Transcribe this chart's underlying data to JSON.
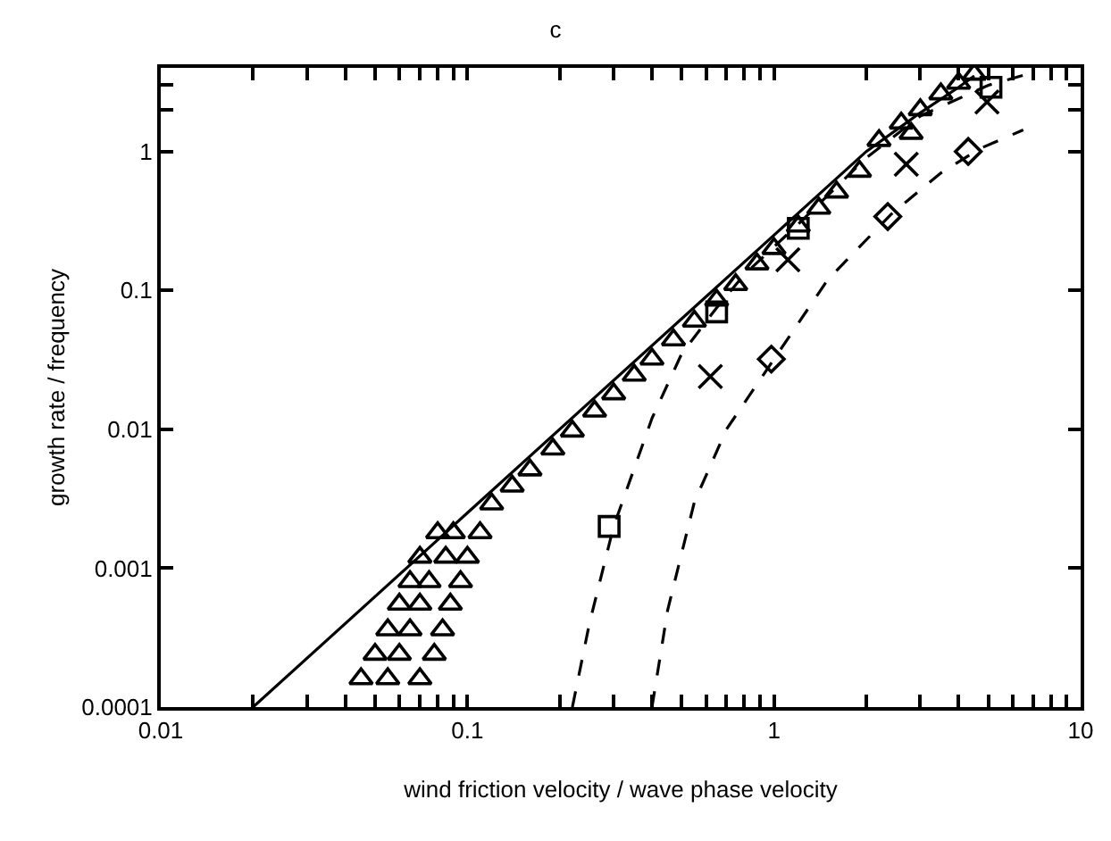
{
  "chart_data": {
    "type": "line",
    "title": "c",
    "xlabel": "wind friction velocity / wave phase velocity",
    "ylabel": "growth rate / frequency",
    "log": "xy",
    "xlim": [
      0.01,
      10
    ],
    "ylim": [
      0.0001,
      4
    ],
    "xticks": [
      0.01,
      {
        "value": 0.02,
        "label": null
      },
      {
        "value": 0.03,
        "label": null
      },
      {
        "value": 0.04,
        "label": null
      },
      {
        "value": 0.05,
        "label": null
      },
      {
        "value": 0.06,
        "label": null
      },
      {
        "value": 0.07,
        "label": null
      },
      {
        "value": 0.08,
        "label": null
      },
      {
        "value": 0.09,
        "label": null
      },
      0.1,
      {
        "value": 0.2,
        "label": null
      },
      {
        "value": 0.3,
        "label": null
      },
      {
        "value": 0.4,
        "label": null
      },
      {
        "value": 0.5,
        "label": null
      },
      {
        "value": 0.6,
        "label": null
      },
      {
        "value": 0.7,
        "label": null
      },
      {
        "value": 0.8,
        "label": null
      },
      {
        "value": 0.9,
        "label": null
      },
      1,
      {
        "value": 2,
        "label": null
      },
      {
        "value": 3,
        "label": null
      },
      {
        "value": 4,
        "label": null
      },
      {
        "value": 5,
        "label": null
      },
      {
        "value": 6,
        "label": null
      },
      {
        "value": 7,
        "label": null
      },
      {
        "value": 8,
        "label": null
      },
      {
        "value": 9,
        "label": null
      },
      10
    ],
    "yticks": [
      {
        "value": 0.0001,
        "label": "0.0001"
      },
      {
        "value": 0.001,
        "label": "0.001"
      },
      {
        "value": 0.01,
        "label": "0.01"
      },
      0.1,
      1,
      {
        "value": 2,
        "label": null
      },
      {
        "value": 3,
        "label": null
      },
      {
        "value": 4,
        "label": null
      }
    ],
    "series": [
      {
        "color": "#000000",
        "marker": "none",
        "line_style": "solid",
        "x": [
          0.02,
          0.1,
          0.5,
          1,
          2,
          3,
          4,
          4.5
        ],
        "values": [
          0.0001,
          0.0025,
          0.0625,
          0.25,
          1.0,
          1.9,
          2.9,
          3.5
        ]
      },
      {
        "type": "scatter",
        "color": "#000000",
        "marker": "triangle",
        "x": [
          0.045,
          0.05,
          0.055,
          0.06,
          0.065,
          0.07,
          0.08,
          0.055,
          0.06,
          0.065,
          0.07,
          0.075,
          0.085,
          0.09,
          0.07,
          0.078,
          0.083,
          0.088,
          0.095,
          0.1,
          0.11,
          0.12,
          0.14,
          0.16,
          0.19,
          0.22,
          0.26,
          0.3,
          0.35,
          0.4,
          0.47,
          0.55,
          0.65,
          0.75,
          0.88,
          1,
          1.2,
          1.4,
          1.6,
          1.9,
          2.2,
          2.6,
          2.8,
          3,
          3.5,
          4,
          4.5
        ],
        "values": [
          0.00016,
          0.00024,
          0.00036,
          0.00055,
          0.0008,
          0.0012,
          0.0018,
          0.00016,
          0.00024,
          0.00036,
          0.00055,
          0.0008,
          0.0012,
          0.0018,
          0.00016,
          0.00024,
          0.00036,
          0.00055,
          0.0008,
          0.0012,
          0.0018,
          0.0029,
          0.0039,
          0.0051,
          0.0072,
          0.0097,
          0.0135,
          0.018,
          0.0245,
          0.032,
          0.044,
          0.06,
          0.085,
          0.11,
          0.155,
          0.2,
          0.29,
          0.39,
          0.51,
          0.72,
          1.2,
          1.6,
          1.35,
          2.0,
          2.6,
          3.1,
          3.6
        ]
      },
      {
        "type": "scatter",
        "color": "#000000",
        "marker": "square",
        "x": [
          0.29,
          0.65,
          1.2,
          5.1
        ],
        "values": [
          0.002,
          0.07,
          0.28,
          2.9
        ]
      },
      {
        "color": "#000000",
        "marker": "none",
        "line_style": "dashed",
        "x": [
          0.22,
          0.25,
          0.3,
          0.4,
          0.5,
          0.65,
          0.8,
          1.2,
          2,
          3,
          5,
          7
        ],
        "values": [
          0.0001,
          0.0004,
          0.002,
          0.012,
          0.035,
          0.075,
          0.13,
          0.3,
          0.9,
          1.8,
          3.0,
          3.7
        ]
      },
      {
        "type": "scatter",
        "color": "#000000",
        "marker": "cross",
        "x": [
          0.62,
          1.11,
          2.7,
          4.95
        ],
        "values": [
          0.024,
          0.166,
          0.81,
          2.27
        ]
      },
      {
        "type": "scatter",
        "color": "#000000",
        "marker": "diamond",
        "x": [
          0.98,
          2.35,
          4.3
        ],
        "values": [
          0.032,
          0.34,
          1.0
        ]
      },
      {
        "color": "#000000",
        "marker": "none",
        "line_style": "dashed",
        "x": [
          0.4,
          0.45,
          0.55,
          0.7,
          1,
          1.5,
          2.4,
          3.5,
          4.7,
          6.5
        ],
        "values": [
          0.0001,
          0.0005,
          0.003,
          0.01,
          0.032,
          0.12,
          0.35,
          0.7,
          1.05,
          1.43
        ]
      }
    ]
  }
}
